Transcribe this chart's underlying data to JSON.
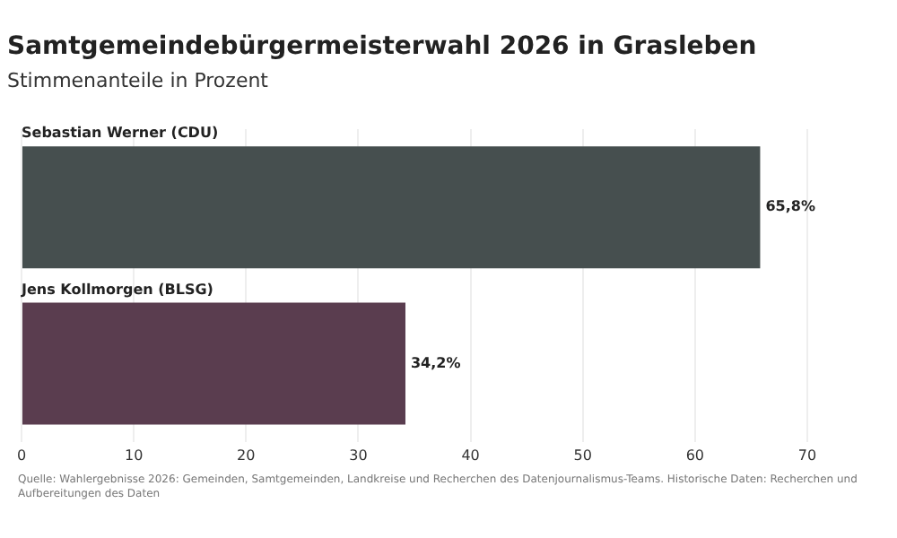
{
  "chart_data": {
    "type": "bar",
    "orientation": "horizontal",
    "title": "Samtgemeindebürgermeisterwahl 2026 in Grasleben",
    "subtitle": "Stimmenanteile in Prozent",
    "categories": [
      "Sebastian Werner (CDU)",
      "Jens Kollmorgen (BLSG)"
    ],
    "values": [
      65.8,
      34.2
    ],
    "value_labels": [
      "65,8%",
      "34,2%"
    ],
    "colors": [
      "#464f4f",
      "#5a3d4f"
    ],
    "xlim": [
      0,
      70
    ],
    "xticks": [
      0,
      10,
      20,
      30,
      40,
      50,
      60,
      70
    ],
    "grid": "x",
    "annotations": [
      "Quelle: Wahlergebnisse 2026: Gemeinden, Samtgemeinden, Landkreise und Recherchen des Datenjournalismus-Teams. Historische Daten: Recherchen und Aufbereitungen des Daten"
    ]
  }
}
